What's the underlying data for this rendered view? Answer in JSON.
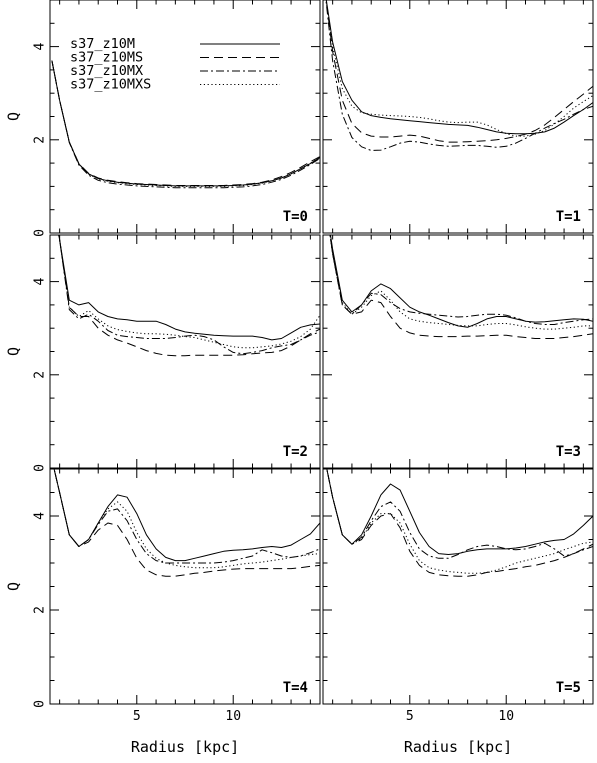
{
  "chart_data": {
    "type": "line",
    "layout": "3 rows x 2 columns",
    "xlabel": "Radius [kpc]",
    "ylabel": "Q",
    "xlim": [
      0.5,
      14.5
    ],
    "ylim": [
      0,
      5
    ],
    "xticks": [
      5,
      10
    ],
    "yticks": [
      0,
      2,
      4
    ],
    "legend": {
      "position": "top-left of first panel",
      "entries": [
        {
          "name": "s37_z10M",
          "style": "solid"
        },
        {
          "name": "s37_z10MS",
          "style": "dashed"
        },
        {
          "name": "s37_z10MX",
          "style": "dash-dot"
        },
        {
          "name": "s37_z10MXS",
          "style": "dotted"
        }
      ]
    },
    "x": [
      0.6,
      1,
      1.5,
      2,
      2.5,
      3,
      3.5,
      4,
      4.5,
      5,
      5.5,
      6,
      6.5,
      7,
      7.5,
      8,
      8.5,
      9,
      9.5,
      10,
      10.5,
      11,
      11.5,
      12,
      12.5,
      13,
      13.5,
      14,
      14.5
    ],
    "panels": [
      {
        "label": "T=0",
        "series": [
          {
            "name": "s37_z10M",
            "values": [
              3.7,
              2.85,
              1.95,
              1.48,
              1.27,
              1.17,
              1.12,
              1.09,
              1.07,
              1.05,
              1.04,
              1.03,
              1.02,
              1.01,
              1.01,
              1.01,
              1.01,
              1.01,
              1.01,
              1.02,
              1.03,
              1.05,
              1.08,
              1.12,
              1.18,
              1.27,
              1.38,
              1.49,
              1.62
            ]
          },
          {
            "name": "s37_z10MS",
            "values": [
              3.7,
              2.85,
              1.95,
              1.49,
              1.28,
              1.18,
              1.13,
              1.1,
              1.08,
              1.06,
              1.05,
              1.04,
              1.03,
              1.02,
              1.02,
              1.02,
              1.02,
              1.02,
              1.02,
              1.03,
              1.04,
              1.06,
              1.09,
              1.14,
              1.21,
              1.3,
              1.41,
              1.53,
              1.64
            ]
          },
          {
            "name": "s37_z10MX",
            "values": [
              3.7,
              2.85,
              1.94,
              1.46,
              1.24,
              1.13,
              1.08,
              1.05,
              1.03,
              1.01,
              1.0,
              0.99,
              0.98,
              0.97,
              0.97,
              0.97,
              0.97,
              0.97,
              0.97,
              0.98,
              0.99,
              1.01,
              1.04,
              1.09,
              1.15,
              1.24,
              1.35,
              1.47,
              1.6
            ]
          },
          {
            "name": "s37_z10MXS",
            "values": [
              3.7,
              2.85,
              1.95,
              1.48,
              1.26,
              1.16,
              1.11,
              1.08,
              1.06,
              1.04,
              1.03,
              1.02,
              1.01,
              1.0,
              1.0,
              1.0,
              1.0,
              1.0,
              1.0,
              1.01,
              1.02,
              1.04,
              1.07,
              1.12,
              1.18,
              1.27,
              1.38,
              1.5,
              1.62
            ]
          }
        ]
      },
      {
        "label": "T=1",
        "series": [
          {
            "name": "s37_z10M",
            "values": [
              5.2,
              4.1,
              3.25,
              2.85,
              2.6,
              2.52,
              2.48,
              2.45,
              2.43,
              2.41,
              2.39,
              2.37,
              2.35,
              2.33,
              2.32,
              2.31,
              2.27,
              2.22,
              2.17,
              2.14,
              2.13,
              2.13,
              2.14,
              2.17,
              2.25,
              2.38,
              2.52,
              2.65,
              2.8
            ]
          },
          {
            "name": "s37_z10MS",
            "values": [
              5.2,
              3.9,
              2.85,
              2.35,
              2.15,
              2.08,
              2.06,
              2.06,
              2.08,
              2.1,
              2.08,
              2.03,
              1.98,
              1.95,
              1.95,
              1.96,
              1.97,
              1.98,
              2.0,
              2.03,
              2.07,
              2.12,
              2.2,
              2.32,
              2.48,
              2.65,
              2.82,
              2.98,
              3.15
            ]
          },
          {
            "name": "s37_z10MX",
            "values": [
              5.2,
              3.7,
              2.55,
              2.05,
              1.85,
              1.77,
              1.78,
              1.85,
              1.93,
              1.97,
              1.95,
              1.91,
              1.88,
              1.86,
              1.87,
              1.88,
              1.88,
              1.86,
              1.84,
              1.86,
              1.93,
              2.03,
              2.14,
              2.25,
              2.35,
              2.44,
              2.55,
              2.65,
              2.72
            ]
          },
          {
            "name": "s37_z10MXS",
            "values": [
              5.2,
              4.0,
              3.1,
              2.72,
              2.58,
              2.55,
              2.53,
              2.52,
              2.51,
              2.5,
              2.48,
              2.45,
              2.41,
              2.38,
              2.37,
              2.38,
              2.38,
              2.32,
              2.22,
              2.13,
              2.08,
              2.08,
              2.12,
              2.2,
              2.34,
              2.5,
              2.68,
              2.82,
              2.95
            ]
          }
        ]
      },
      {
        "label": "T=2",
        "series": [
          {
            "name": "s37_z10M",
            "values": [
              5.8,
              4.9,
              3.6,
              3.5,
              3.55,
              3.35,
              3.25,
              3.2,
              3.18,
              3.15,
              3.15,
              3.15,
              3.08,
              2.98,
              2.92,
              2.89,
              2.87,
              2.85,
              2.84,
              2.83,
              2.83,
              2.83,
              2.8,
              2.75,
              2.78,
              2.9,
              3.02,
              3.07,
              3.09
            ]
          },
          {
            "name": "s37_z10MS",
            "values": [
              5.8,
              4.9,
              3.45,
              3.25,
              3.25,
              3.0,
              2.85,
              2.75,
              2.68,
              2.6,
              2.52,
              2.46,
              2.42,
              2.41,
              2.41,
              2.42,
              2.42,
              2.42,
              2.42,
              2.42,
              2.43,
              2.45,
              2.47,
              2.48,
              2.52,
              2.62,
              2.75,
              2.88,
              2.98
            ]
          },
          {
            "name": "s37_z10MX",
            "values": [
              5.8,
              4.9,
              3.4,
              3.2,
              3.3,
              3.15,
              2.95,
              2.85,
              2.82,
              2.8,
              2.78,
              2.78,
              2.78,
              2.8,
              2.83,
              2.85,
              2.82,
              2.75,
              2.6,
              2.48,
              2.45,
              2.48,
              2.52,
              2.58,
              2.62,
              2.65,
              2.75,
              2.85,
              2.92
            ]
          },
          {
            "name": "s37_z10MXS",
            "values": [
              5.8,
              4.9,
              3.45,
              3.25,
              3.38,
              3.2,
              3.05,
              2.97,
              2.93,
              2.9,
              2.88,
              2.88,
              2.87,
              2.85,
              2.82,
              2.8,
              2.75,
              2.7,
              2.65,
              2.6,
              2.58,
              2.58,
              2.6,
              2.62,
              2.66,
              2.72,
              2.82,
              2.98,
              3.28
            ]
          }
        ]
      },
      {
        "label": "T=3",
        "series": [
          {
            "name": "s37_z10M",
            "values": [
              5.8,
              4.7,
              3.6,
              3.35,
              3.5,
              3.8,
              3.95,
              3.85,
              3.65,
              3.45,
              3.35,
              3.28,
              3.2,
              3.12,
              3.05,
              3.02,
              3.1,
              3.2,
              3.25,
              3.25,
              3.2,
              3.15,
              3.13,
              3.14,
              3.16,
              3.18,
              3.2,
              3.19,
              3.15
            ]
          },
          {
            "name": "s37_z10MS",
            "values": [
              5.8,
              4.6,
              3.5,
              3.3,
              3.35,
              3.6,
              3.55,
              3.25,
              3.0,
              2.9,
              2.85,
              2.83,
              2.82,
              2.82,
              2.82,
              2.83,
              2.83,
              2.84,
              2.85,
              2.85,
              2.82,
              2.8,
              2.78,
              2.78,
              2.78,
              2.8,
              2.82,
              2.85,
              2.88
            ]
          },
          {
            "name": "s37_z10MX",
            "values": [
              5.8,
              4.6,
              3.5,
              3.3,
              3.5,
              3.75,
              3.72,
              3.55,
              3.42,
              3.35,
              3.32,
              3.3,
              3.28,
              3.26,
              3.24,
              3.25,
              3.28,
              3.3,
              3.3,
              3.28,
              3.22,
              3.15,
              3.1,
              3.08,
              3.08,
              3.12,
              3.15,
              3.18,
              3.2
            ]
          },
          {
            "name": "s37_z10MXS",
            "values": [
              5.8,
              4.6,
              3.55,
              3.3,
              3.45,
              3.7,
              3.8,
              3.6,
              3.35,
              3.2,
              3.15,
              3.12,
              3.1,
              3.08,
              3.06,
              3.05,
              3.05,
              3.08,
              3.1,
              3.1,
              3.07,
              3.03,
              3.0,
              2.98,
              2.98,
              3.0,
              3.02,
              3.05,
              3.05
            ]
          }
        ]
      },
      {
        "label": "T=4",
        "series": [
          {
            "name": "s37_z10M",
            "values": [
              5.2,
              4.5,
              3.6,
              3.35,
              3.5,
              3.85,
              4.2,
              4.45,
              4.4,
              4.05,
              3.6,
              3.3,
              3.12,
              3.05,
              3.05,
              3.1,
              3.15,
              3.2,
              3.25,
              3.27,
              3.28,
              3.3,
              3.33,
              3.35,
              3.33,
              3.38,
              3.5,
              3.62,
              3.85
            ]
          },
          {
            "name": "s37_z10MS",
            "values": [
              5.2,
              4.5,
              3.6,
              3.35,
              3.45,
              3.7,
              3.85,
              3.8,
              3.5,
              3.1,
              2.85,
              2.75,
              2.72,
              2.72,
              2.75,
              2.78,
              2.8,
              2.83,
              2.85,
              2.87,
              2.88,
              2.88,
              2.88,
              2.88,
              2.88,
              2.88,
              2.9,
              2.93,
              2.95
            ]
          },
          {
            "name": "s37_z10MX",
            "values": [
              5.2,
              4.5,
              3.6,
              3.35,
              3.5,
              3.82,
              4.1,
              4.15,
              3.9,
              3.5,
              3.2,
              3.05,
              3.0,
              3.0,
              3.0,
              3.0,
              3.0,
              3.0,
              3.02,
              3.05,
              3.1,
              3.15,
              3.28,
              3.22,
              3.15,
              3.12,
              3.15,
              3.22,
              3.3
            ]
          },
          {
            "name": "s37_z10MXS",
            "values": [
              5.2,
              4.5,
              3.6,
              3.35,
              3.5,
              3.85,
              4.15,
              4.3,
              4.1,
              3.65,
              3.3,
              3.1,
              3.0,
              2.95,
              2.92,
              2.9,
              2.9,
              2.9,
              2.92,
              2.95,
              2.98,
              3.0,
              3.02,
              3.05,
              3.08,
              3.12,
              3.15,
              3.18,
              3.2
            ]
          }
        ]
      },
      {
        "label": "T=5",
        "series": [
          {
            "name": "s37_z10M",
            "values": [
              5.2,
              4.4,
              3.6,
              3.4,
              3.6,
              4.0,
              4.45,
              4.68,
              4.55,
              4.1,
              3.65,
              3.35,
              3.2,
              3.18,
              3.2,
              3.25,
              3.28,
              3.3,
              3.3,
              3.3,
              3.32,
              3.35,
              3.4,
              3.45,
              3.48,
              3.5,
              3.62,
              3.8,
              4.0
            ]
          },
          {
            "name": "s37_z10MS",
            "values": [
              5.2,
              4.4,
              3.6,
              3.4,
              3.5,
              3.8,
              4.0,
              4.05,
              3.75,
              3.25,
              2.95,
              2.8,
              2.75,
              2.73,
              2.72,
              2.72,
              2.75,
              2.8,
              2.82,
              2.85,
              2.88,
              2.92,
              2.95,
              3.0,
              3.05,
              3.12,
              3.2,
              3.3,
              3.4
            ]
          },
          {
            "name": "s37_z10MX",
            "values": [
              5.2,
              4.4,
              3.6,
              3.4,
              3.55,
              3.9,
              4.2,
              4.3,
              4.1,
              3.65,
              3.3,
              3.15,
              3.1,
              3.1,
              3.18,
              3.28,
              3.35,
              3.38,
              3.35,
              3.3,
              3.28,
              3.3,
              3.35,
              3.42,
              3.3,
              3.15,
              3.2,
              3.28,
              3.35
            ]
          },
          {
            "name": "s37_z10MXS",
            "values": [
              5.2,
              4.4,
              3.6,
              3.4,
              3.52,
              3.85,
              4.05,
              4.05,
              3.85,
              3.4,
              3.05,
              2.9,
              2.85,
              2.82,
              2.8,
              2.78,
              2.78,
              2.8,
              2.85,
              2.92,
              3.0,
              3.05,
              3.1,
              3.15,
              3.2,
              3.28,
              3.35,
              3.42,
              3.45
            ]
          }
        ]
      }
    ]
  }
}
